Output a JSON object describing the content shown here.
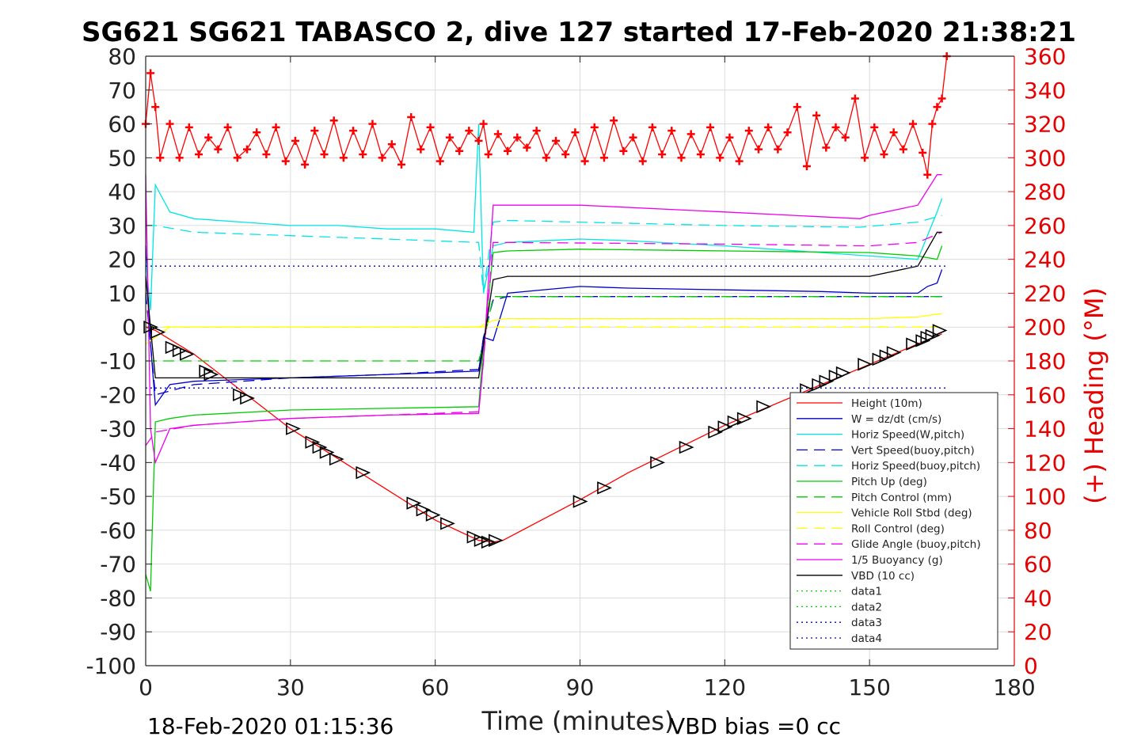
{
  "title": "SG621 SG621 TABASCO 2, dive 127 started 17-Feb-2020 21:38:21",
  "footer_left": "18-Feb-2020 01:15:36",
  "footer_right": "VBD bias =0 cc",
  "colors": {
    "heading": "#ff0000",
    "height": "#ff0000",
    "w": "#0000cc",
    "horiz": "#00e5e5",
    "pitch": "#00cc00",
    "roll": "#ffff00",
    "glide": "#ee00ee",
    "vbd": "#000000"
  },
  "chart_data": {
    "type": "line",
    "xlabel": "Time (minutes)",
    "ylabel_right": "(+) Heading (°M)",
    "xlim": [
      0,
      180
    ],
    "ylim_left": [
      -100,
      80
    ],
    "ylim_right": [
      0,
      360
    ],
    "x_ticks": [
      "0",
      "30",
      "60",
      "90",
      "120",
      "150",
      "180"
    ],
    "y_ticks_left": [
      "80",
      "70",
      "60",
      "50",
      "40",
      "30",
      "20",
      "10",
      "0",
      "-10",
      "-20",
      "-30",
      "-40",
      "-50",
      "-60",
      "-70",
      "-80",
      "-90",
      "-100"
    ],
    "y_ticks_right": [
      "360",
      "340",
      "320",
      "300",
      "280",
      "260",
      "240",
      "220",
      "200",
      "180",
      "160",
      "140",
      "120",
      "100",
      "80",
      "60",
      "40",
      "20",
      "0"
    ],
    "grid": true,
    "legend_position": "bottom-right",
    "legend": [
      {
        "label": "Height (10m)",
        "color": "#ff0000",
        "dash": "solid"
      },
      {
        "label": "W = dz/dt (cm/s)",
        "color": "#0000cc",
        "dash": "solid"
      },
      {
        "label": "Horiz Speed(W,pitch)",
        "color": "#00e5e5",
        "dash": "solid"
      },
      {
        "label": "Vert Speed(buoy,pitch)",
        "color": "#0000cc",
        "dash": "dashed"
      },
      {
        "label": "Horiz Speed(buoy,pitch)",
        "color": "#00e5e5",
        "dash": "dashed"
      },
      {
        "label": "Pitch Up (deg)",
        "color": "#00cc00",
        "dash": "solid"
      },
      {
        "label": "Pitch Control (mm)",
        "color": "#00cc00",
        "dash": "dashed"
      },
      {
        "label": "Vehicle Roll Stbd (deg)",
        "color": "#ffff00",
        "dash": "solid"
      },
      {
        "label": "Roll Control (deg)",
        "color": "#ffff00",
        "dash": "dashed"
      },
      {
        "label": "Glide Angle (buoy,pitch)",
        "color": "#ee00ee",
        "dash": "dashed"
      },
      {
        "label": "1/5 Buoyancy (g)",
        "color": "#ee00ee",
        "dash": "solid"
      },
      {
        "label": "VBD (10 cc)",
        "color": "#000000",
        "dash": "solid"
      },
      {
        "label": "data1",
        "color": "#00cc00",
        "dash": "dotted"
      },
      {
        "label": "data2",
        "color": "#00cc00",
        "dash": "dotted"
      },
      {
        "label": "data3",
        "color": "#0000cc",
        "dash": "dotted"
      },
      {
        "label": "data4",
        "color": "#0000cc",
        "dash": "dotted"
      }
    ],
    "series": [
      {
        "name": "Height (10m)",
        "axis": "left",
        "x": [
          0,
          2,
          10,
          20,
          30,
          40,
          50,
          60,
          69,
          72,
          74,
          90,
          100,
          110,
          120,
          130,
          140,
          150,
          160,
          165
        ],
        "y": [
          0,
          -1,
          -8,
          -19,
          -30,
          -39,
          -48,
          -57,
          -63,
          -63.5,
          -63,
          -51,
          -43,
          -36,
          -29,
          -23,
          -17,
          -11,
          -5,
          -2
        ]
      },
      {
        "name": "W = dz/dt (cm/s)",
        "axis": "left",
        "x": [
          0,
          1,
          2,
          5,
          10,
          20,
          30,
          40,
          50,
          60,
          69,
          70,
          72,
          75,
          90,
          100,
          120,
          140,
          150,
          160,
          162,
          164,
          165
        ],
        "y": [
          24,
          -5,
          -23,
          -17,
          -16,
          -15.5,
          -15,
          -14.5,
          -14,
          -13.5,
          -13,
          -3,
          -4,
          10,
          12,
          11.5,
          11,
          10.5,
          10,
          10,
          12,
          13,
          17
        ]
      },
      {
        "name": "Horiz Speed(W,pitch)",
        "axis": "left",
        "x": [
          0,
          1,
          2,
          5,
          10,
          20,
          30,
          40,
          50,
          60,
          68,
          69,
          70,
          72,
          75,
          90,
          100,
          120,
          140,
          150,
          160,
          164,
          165
        ],
        "y": [
          20,
          5,
          42,
          34,
          32,
          31,
          30,
          30,
          29,
          29,
          28,
          60,
          10,
          24,
          25,
          26,
          25.5,
          24,
          22,
          21,
          20,
          34,
          38
        ]
      },
      {
        "name": "Vert Speed(buoy,pitch)",
        "axis": "left",
        "x": [
          0,
          2,
          10,
          30,
          50,
          69,
          70,
          72,
          75,
          165
        ],
        "y": [
          10,
          -20,
          -17,
          -15,
          -14,
          -12.5,
          -3,
          8,
          9,
          9
        ]
      },
      {
        "name": "Horiz Speed(buoy,pitch)",
        "axis": "left",
        "x": [
          0,
          2,
          10,
          30,
          50,
          69,
          70,
          72,
          75,
          120,
          148,
          160,
          165
        ],
        "y": [
          30,
          30,
          28,
          27,
          26,
          25,
          10,
          31,
          31.5,
          30,
          29.5,
          31,
          33
        ]
      },
      {
        "name": "Pitch Up (deg)",
        "axis": "left",
        "x": [
          0,
          1,
          2,
          5,
          10,
          30,
          50,
          69,
          70,
          72,
          75,
          90,
          120,
          150,
          160,
          164,
          165
        ],
        "y": [
          -73,
          -78,
          -28,
          -27,
          -26,
          -24.5,
          -24,
          -23.5,
          -6,
          22,
          22.5,
          23,
          22.5,
          22,
          21,
          20,
          24
        ]
      },
      {
        "name": "Pitch Control (mm)",
        "axis": "left",
        "x": [
          0,
          2,
          69,
          70,
          72,
          75,
          165
        ],
        "y": [
          -10,
          -10,
          -10,
          -5,
          9,
          9,
          9
        ]
      },
      {
        "name": "Vehicle Roll Stbd (deg)",
        "axis": "left",
        "x": [
          0,
          5,
          10,
          20,
          40,
          60,
          69,
          72,
          75,
          90,
          120,
          150,
          160,
          165
        ],
        "y": [
          -5,
          0,
          0,
          0,
          0,
          0,
          0,
          2,
          2.5,
          2.5,
          2.5,
          2.5,
          3,
          4
        ]
      },
      {
        "name": "Roll Control (deg)",
        "axis": "left",
        "x": [
          0,
          165
        ],
        "y": [
          0,
          0
        ]
      },
      {
        "name": "Glide Angle (buoy,pitch)",
        "axis": "left",
        "x": [
          0,
          2,
          10,
          30,
          50,
          69,
          70,
          72,
          75,
          120,
          150,
          160,
          165
        ],
        "y": [
          -35,
          -31,
          -29,
          -27,
          -26,
          -25,
          -10,
          25,
          25,
          24.5,
          24,
          25,
          28
        ]
      },
      {
        "name": "1/5 Buoyancy (g)",
        "axis": "left",
        "x": [
          0,
          1,
          2,
          5,
          10,
          30,
          50,
          69,
          70,
          72,
          75,
          90,
          120,
          148,
          150,
          160,
          164,
          165
        ],
        "y": [
          45,
          -30,
          -40,
          -30,
          -29,
          -27,
          -26,
          -25.5,
          -10,
          36,
          36,
          36,
          34,
          32,
          33,
          36,
          45,
          45
        ]
      },
      {
        "name": "VBD (10 cc)",
        "axis": "left",
        "x": [
          0,
          2,
          69,
          70,
          72,
          75,
          150,
          160,
          164,
          165
        ],
        "y": [
          15,
          -15,
          -15,
          -5,
          14,
          15,
          15,
          18,
          28,
          28
        ]
      },
      {
        "name": "data3",
        "axis": "left",
        "x": [
          0,
          166
        ],
        "y": [
          18,
          18
        ]
      },
      {
        "name": "data4",
        "axis": "left",
        "x": [
          0,
          166
        ],
        "y": [
          -18,
          -18
        ]
      },
      {
        "name": "Heading",
        "axis": "right",
        "x": [
          0,
          1,
          2,
          3,
          5,
          7,
          9,
          11,
          13,
          15,
          17,
          19,
          21,
          23,
          25,
          27,
          29,
          31,
          33,
          35,
          37,
          39,
          41,
          43,
          45,
          47,
          49,
          51,
          53,
          55,
          57,
          59,
          61,
          63,
          65,
          67,
          69,
          70,
          71,
          73,
          75,
          77,
          79,
          81,
          83,
          85,
          87,
          89,
          91,
          93,
          95,
          97,
          99,
          101,
          103,
          105,
          107,
          109,
          111,
          113,
          115,
          117,
          119,
          121,
          123,
          125,
          127,
          129,
          131,
          133,
          135,
          137,
          139,
          141,
          143,
          145,
          147,
          149,
          151,
          153,
          155,
          157,
          159,
          161,
          162,
          163,
          164,
          165,
          166
        ],
        "y": [
          320,
          350,
          330,
          300,
          320,
          300,
          318,
          302,
          312,
          305,
          318,
          300,
          305,
          315,
          302,
          318,
          298,
          310,
          296,
          316,
          302,
          322,
          300,
          316,
          302,
          320,
          300,
          308,
          296,
          324,
          305,
          318,
          298,
          312,
          304,
          316,
          310,
          320,
          302,
          314,
          304,
          312,
          306,
          316,
          300,
          310,
          302,
          315,
          298,
          318,
          300,
          322,
          304,
          312,
          298,
          318,
          302,
          316,
          300,
          314,
          302,
          318,
          300,
          312,
          298,
          316,
          305,
          318,
          305,
          315,
          330,
          295,
          325,
          306,
          318,
          312,
          335,
          300,
          318,
          302,
          315,
          305,
          320,
          303,
          290,
          320,
          330,
          335,
          360
        ]
      }
    ],
    "markers": {
      "description": "triangle markers along Height trace",
      "x": [
        1,
        2.5,
        5.5,
        7,
        8.5,
        12.5,
        13.5,
        19.5,
        21,
        30.5,
        34.5,
        36,
        37.5,
        39.5,
        45,
        55.5,
        57.5,
        59.5,
        62.5,
        68,
        69.5,
        71,
        72.5,
        90,
        95,
        106,
        112,
        118,
        120,
        122,
        124,
        128,
        137,
        139.5,
        141,
        143,
        144.5,
        149,
        152,
        153.5,
        155,
        159,
        161,
        162,
        163,
        164.5
      ],
      "y": [
        0,
        -1.5,
        -6,
        -7,
        -8,
        -13,
        -14,
        -20,
        -21,
        -30,
        -34,
        -35.5,
        -37,
        -39,
        -43,
        -52,
        -54,
        -55.5,
        -58,
        -62,
        -63,
        -63.5,
        -63,
        -51.5,
        -47.5,
        -40,
        -35.5,
        -31,
        -29.5,
        -28,
        -27,
        -23.5,
        -18.5,
        -17,
        -16,
        -14.5,
        -13.5,
        -11,
        -9.5,
        -8.5,
        -7.5,
        -5,
        -4,
        -3,
        -2.5,
        -1
      ]
    }
  }
}
